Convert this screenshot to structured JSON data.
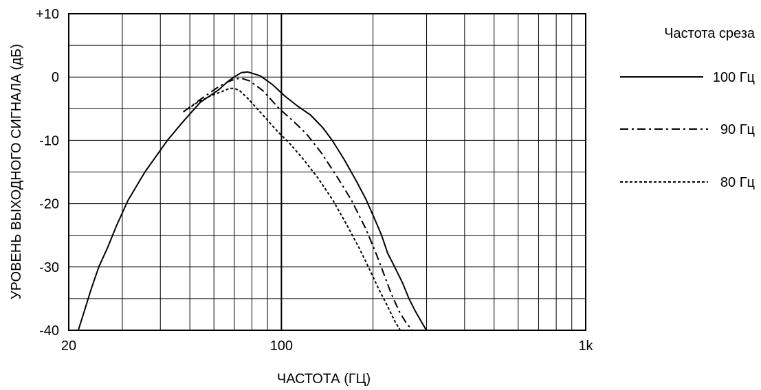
{
  "chart_data": {
    "type": "line",
    "xlabel": "ЧАСТОТА (ГЦ)",
    "ylabel": "УРОВЕНЬ ВЫХОДНОГО СИГНАЛА (дБ)",
    "x_scale": "log",
    "xlim": [
      20,
      1000
    ],
    "ylim": [
      -40,
      10
    ],
    "x_tick_labels": [
      {
        "value": 20,
        "label": "20"
      },
      {
        "value": 100,
        "label": "100"
      },
      {
        "value": 1000,
        "label": "1k"
      }
    ],
    "y_tick_labels": [
      {
        "value": 10,
        "label": "+10"
      },
      {
        "value": 0,
        "label": "0"
      },
      {
        "value": -10,
        "label": "-10"
      },
      {
        "value": -20,
        "label": "-20"
      },
      {
        "value": -30,
        "label": "-30"
      },
      {
        "value": -40,
        "label": "-40"
      }
    ],
    "x_grid_major": [
      100
    ],
    "x_grid_minor": [
      30,
      40,
      50,
      60,
      70,
      80,
      90,
      200,
      300,
      400,
      500,
      600,
      700,
      800,
      900
    ],
    "y_grid": [
      -35,
      -30,
      -25,
      -20,
      -15,
      -10,
      -5,
      0,
      5
    ],
    "grid": true,
    "legend_title": "Частота среза",
    "legend_position": "right",
    "series": [
      {
        "name": "100 Гц",
        "style": "solid",
        "color": "#000000",
        "x": [
          21.5,
          22.5,
          23.7,
          25.1,
          26.8,
          28.7,
          31.3,
          35.6,
          42.2,
          47.6,
          54.1,
          62.3,
          66.3,
          69.9,
          73.9,
          77.6,
          85.2,
          93.5,
          102.6,
          113.1,
          124.6,
          136.8,
          146.8,
          160.7,
          175.7,
          189.5,
          202.8,
          213.4,
          223.3,
          236.7,
          250.0,
          262.5,
          275.5,
          288.8,
          299.5
        ],
        "y": [
          -40,
          -37,
          -33.5,
          -30,
          -27,
          -23.5,
          -19.5,
          -15,
          -10,
          -7,
          -4,
          -2,
          -0.8,
          0,
          0.7,
          0.8,
          0.2,
          -1.2,
          -3,
          -4.6,
          -6,
          -8,
          -10,
          -13,
          -16.3,
          -19.3,
          -22.5,
          -25,
          -27.8,
          -30.2,
          -32.5,
          -35,
          -37,
          -38.7,
          -40
        ]
      },
      {
        "name": "90 Гц",
        "style": "dashdot",
        "color": "#000000",
        "x": [
          47.6,
          55.0,
          62.3,
          67.1,
          70.7,
          73.9,
          78.5,
          86.7,
          98.4,
          109.6,
          121.0,
          135.4,
          152.6,
          170.1,
          189.5,
          205.1,
          216.7,
          228.6,
          243.7,
          258.3,
          270.0
        ],
        "y": [
          -5.5,
          -3.3,
          -1.5,
          -0.7,
          -0.3,
          -0.2,
          -0.6,
          -2.1,
          -5,
          -7,
          -9,
          -12,
          -15.8,
          -19.5,
          -24,
          -28,
          -31,
          -34,
          -37,
          -39,
          -40
        ]
      },
      {
        "name": "80 Гц",
        "style": "dotted",
        "color": "#000000",
        "x": [
          47.6,
          53.0,
          58.3,
          63.7,
          67.5,
          70.1,
          73.1,
          78.0,
          86.9,
          96.7,
          106.5,
          118.1,
          132.1,
          147.8,
          163.8,
          180.0,
          195.4,
          208.9,
          222.1,
          235.5,
          245.7
        ],
        "y": [
          -5.5,
          -4,
          -3,
          -2.3,
          -1.8,
          -1.8,
          -2.2,
          -3.5,
          -6,
          -8.5,
          -10.5,
          -13,
          -16,
          -19.5,
          -23.3,
          -27,
          -30.5,
          -33.5,
          -36,
          -38.5,
          -40
        ]
      }
    ]
  }
}
